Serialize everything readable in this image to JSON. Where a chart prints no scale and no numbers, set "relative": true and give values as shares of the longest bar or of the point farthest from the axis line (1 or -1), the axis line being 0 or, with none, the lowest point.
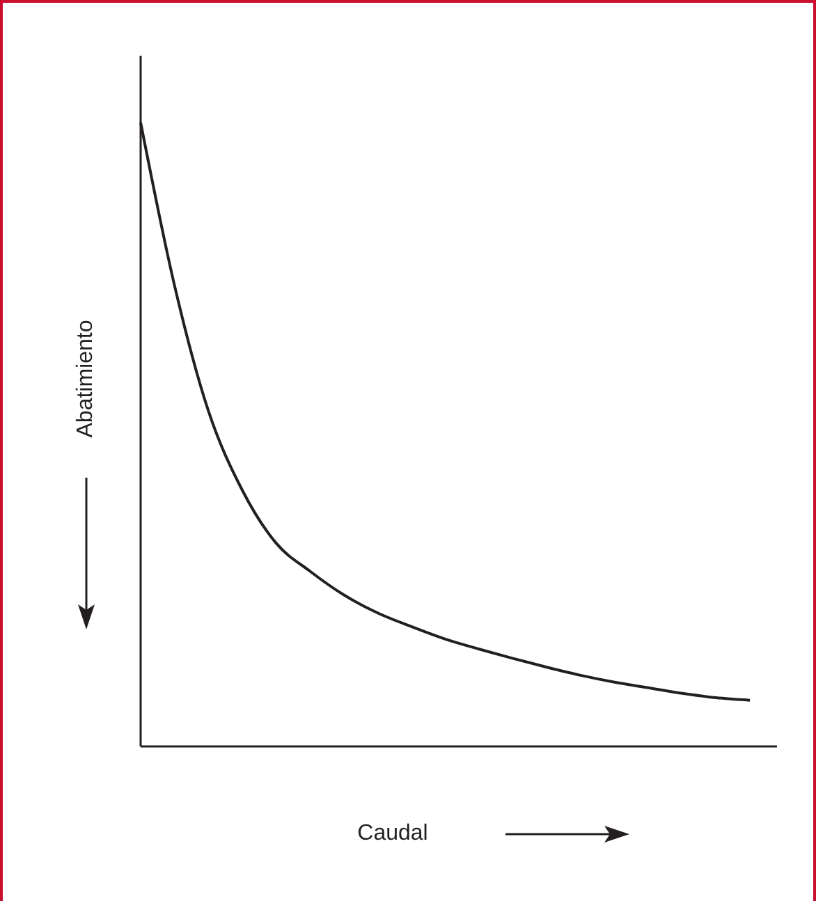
{
  "chart_data": {
    "type": "line",
    "relative": true,
    "xlabel": "Caudal",
    "ylabel": "Abatimiento",
    "categories": [
      null,
      null,
      null,
      null,
      null,
      null,
      null,
      null,
      null,
      null,
      null,
      null,
      null,
      null,
      null,
      null,
      null,
      null,
      null
    ],
    "series": [
      {
        "color": "#231f20",
        "values": [
          1.0,
          0.739,
          0.538,
          0.411,
          0.326,
          0.281,
          0.243,
          0.214,
          0.192,
          0.172,
          0.156,
          0.141,
          0.127,
          0.114,
          0.103,
          0.094,
          0.085,
          0.078,
          0.074
        ]
      }
    ],
    "marker": "none",
    "line_style": "solid"
  }
}
